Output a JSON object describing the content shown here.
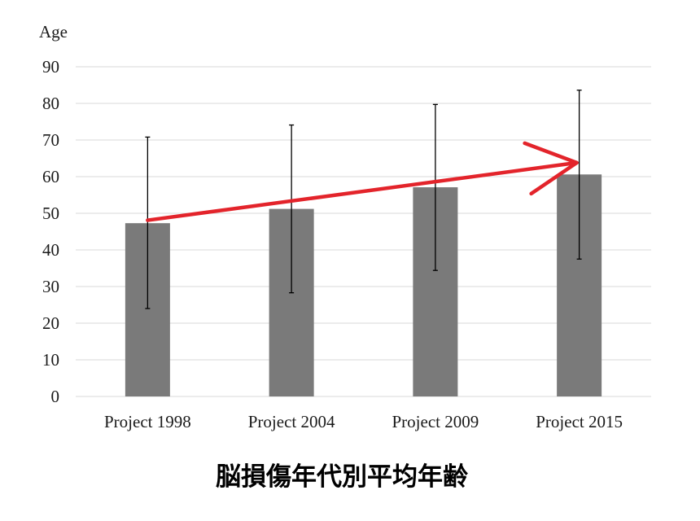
{
  "chart_data": {
    "type": "bar",
    "title": "脳損傷年代別平均年齢",
    "ylabel": "Age",
    "xlabel": "",
    "ylim": [
      0,
      90
    ],
    "yticks": [
      0,
      10,
      20,
      30,
      40,
      50,
      60,
      70,
      80,
      90
    ],
    "grid": true,
    "categories": [
      "Project 1998",
      "Project 2004",
      "Project 2009",
      "Project 2015"
    ],
    "values": [
      47.3,
      51.2,
      57.1,
      60.6
    ],
    "error_bars": [
      {
        "low": 24.0,
        "high": 70.8
      },
      {
        "low": 28.3,
        "high": 74.1
      },
      {
        "low": 34.4,
        "high": 79.7
      },
      {
        "low": 37.5,
        "high": 83.6
      }
    ],
    "annotation": {
      "type": "trend-arrow",
      "from_value": 48.1,
      "to_value": 63.8,
      "color": "#e3242b"
    },
    "colors": {
      "bar": "#7a7a7a",
      "error_bar": "#000000",
      "grid": "#d9d9d9"
    }
  }
}
